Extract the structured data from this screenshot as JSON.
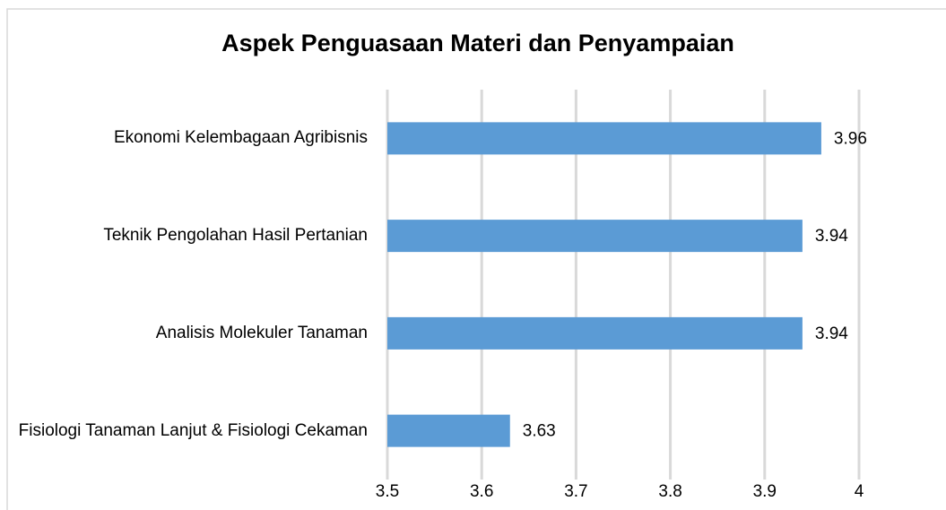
{
  "chart_data": {
    "type": "bar",
    "orientation": "horizontal",
    "title": "Aspek Penguasaan Materi dan Penyampaian",
    "categories": [
      "Ekonomi Kelembagaan Agribisnis",
      "Teknik Pengolahan Hasil Pertanian",
      "Analisis Molekuler Tanaman",
      "Fisiologi Tanaman Lanjut & Fisiologi Cekaman"
    ],
    "values": [
      3.96,
      3.94,
      3.94,
      3.63
    ],
    "color": "#5b9bd5",
    "xlim": [
      3.5,
      4
    ],
    "xticks": [
      3.5,
      3.6,
      3.7,
      3.8,
      3.9,
      4
    ],
    "grid": true
  }
}
